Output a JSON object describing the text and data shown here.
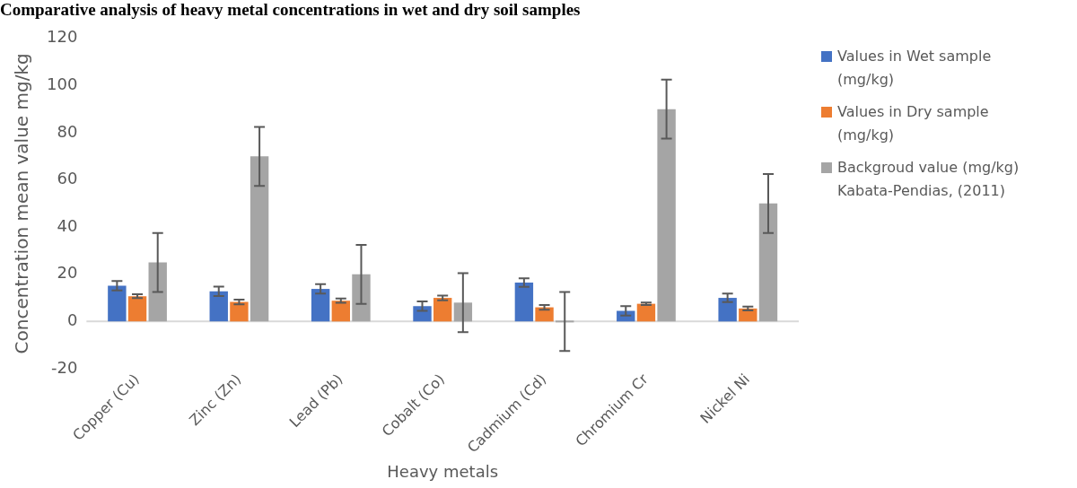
{
  "chart_data": {
    "type": "bar",
    "title": "Comparative analysis of heavy metal concentrations in wet and dry soil samples",
    "xlabel": "Heavy metals",
    "ylabel": "Concentration mean value mg/kg",
    "categories": [
      "Copper (Cu)",
      "Zinc (Zn)",
      "Lead (Pb)",
      "Cobalt (Co)",
      "Cadmium (Cd)",
      "Chromium Cr",
      "Nickel Ni"
    ],
    "series": [
      {
        "name": "Values in Wet sample (mg/kg)",
        "color": "#4472c4",
        "values": [
          15.2,
          12.8,
          13.8,
          6.5,
          16.5,
          4.5,
          10
        ],
        "errors": [
          2,
          2,
          2,
          2,
          1.8,
          2,
          1.8
        ]
      },
      {
        "name": "Values in Dry sample (mg/kg)",
        "color": "#ed7d31",
        "values": [
          10.7,
          8.3,
          8.8,
          10,
          6,
          7.5,
          5.5
        ],
        "errors": [
          0.8,
          1,
          0.9,
          1,
          1,
          0.5,
          0.8
        ]
      },
      {
        "name": "Backgroud value (mg/kg) Kabata-Pendias, (2011)",
        "color": "#a5a5a5",
        "values": [
          25,
          70,
          20,
          8,
          0,
          90,
          50
        ],
        "errors": [
          12.5,
          12.5,
          12.5,
          12.5,
          12.5,
          12.5,
          12.5
        ]
      }
    ],
    "ref_lines": [
      {
        "axis": "y",
        "value": 0,
        "color": "#d9d9d9"
      }
    ],
    "ylim": [
      -20,
      120
    ],
    "yticks": [
      -20,
      0,
      20,
      40,
      60,
      80,
      100,
      120
    ],
    "grid": false,
    "legend": "right"
  }
}
